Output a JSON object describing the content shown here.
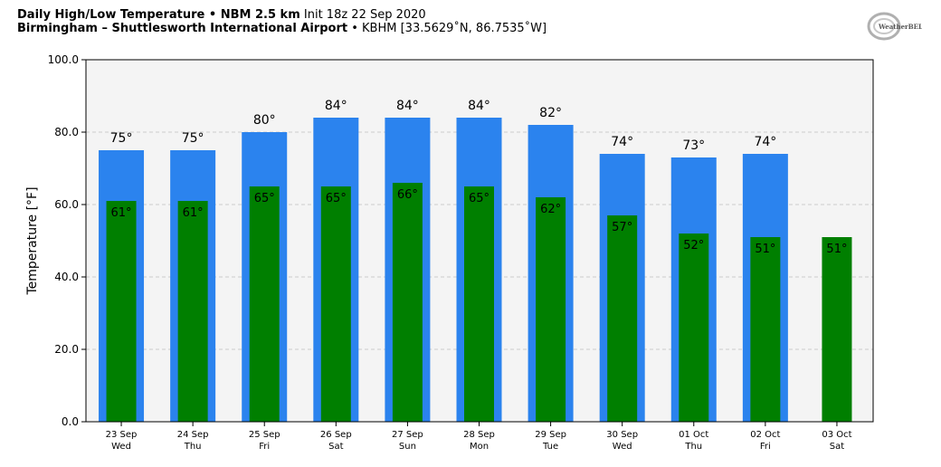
{
  "header": {
    "line1_bold": "Daily High/Low Temperature • NBM 2.5 km",
    "line1_light": "Init 18z 22 Sep 2020",
    "line2_bold": "Birmingham – Shuttlesworth International Airport",
    "line2_light": "• KBHM [33.5629˚N, 86.7535˚W]"
  },
  "logo": {
    "text": "WeatherBELL",
    "icon": "weatherbell-logo"
  },
  "chart_data": {
    "type": "bar",
    "title": "",
    "xlabel": "",
    "ylabel": "Temperature [°F]",
    "ylim": [
      0,
      100
    ],
    "yticks": [
      "0.0",
      "20.0",
      "40.0",
      "60.0",
      "80.0",
      "100.0"
    ],
    "grid": true,
    "categories": [
      "23 Sep",
      "24 Sep",
      "25 Sep",
      "26 Sep",
      "27 Sep",
      "28 Sep",
      "29 Sep",
      "30 Sep",
      "01 Oct",
      "02 Oct",
      "03 Oct"
    ],
    "weekdays": [
      "Wed",
      "Thu",
      "Fri",
      "Sat",
      "Sun",
      "Mon",
      "Tue",
      "Wed",
      "Thu",
      "Fri",
      "Sat"
    ],
    "series": [
      {
        "name": "High",
        "color": "#2b83ee",
        "values": [
          75,
          75,
          80,
          84,
          84,
          84,
          82,
          74,
          73,
          74,
          null
        ],
        "labels": [
          "75°",
          "75°",
          "80°",
          "84°",
          "84°",
          "84°",
          "82°",
          "74°",
          "73°",
          "74°",
          ""
        ]
      },
      {
        "name": "Low",
        "color": "#007f00",
        "values": [
          61,
          61,
          65,
          65,
          66,
          65,
          62,
          57,
          52,
          51,
          51
        ],
        "labels": [
          "61°",
          "61°",
          "65°",
          "65°",
          "66°",
          "65°",
          "62°",
          "57°",
          "52°",
          "51°",
          "51°"
        ]
      }
    ],
    "colors": {
      "plot_bg": "#f4f4f4",
      "grid": "#cccccc"
    }
  }
}
